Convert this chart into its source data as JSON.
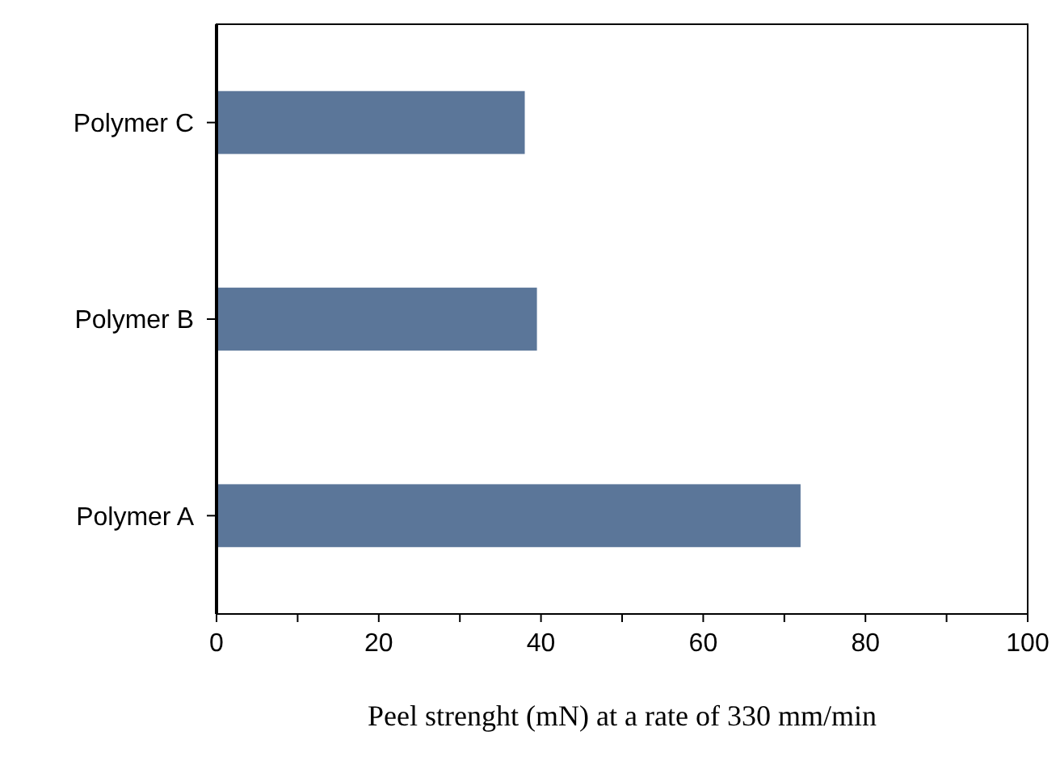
{
  "chart_data": {
    "type": "bar",
    "orientation": "horizontal",
    "categories": [
      "Polymer C",
      "Polymer B",
      "Polymer A"
    ],
    "values": [
      38,
      39.5,
      72
    ],
    "color": "#5b7699",
    "xlim": [
      0,
      100
    ],
    "xticks": [
      0,
      {
        "value": 10,
        "label": null
      },
      20,
      {
        "value": 30,
        "label": null
      },
      40,
      {
        "value": 50,
        "label": null
      },
      60,
      {
        "value": 70,
        "label": null
      },
      80,
      {
        "value": 90,
        "label": null
      },
      100
    ],
    "xlabel": "Peel strenght (mN) at a rate of 330 mm/min",
    "grid": false
  }
}
